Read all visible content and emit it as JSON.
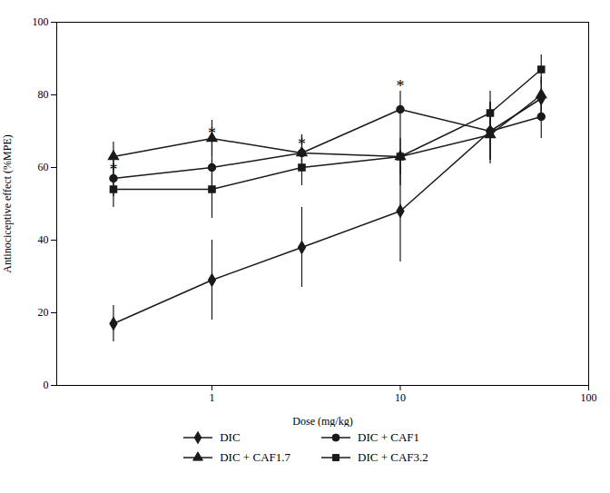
{
  "chart_data": {
    "type": "line",
    "xlabel": "Dose (mg/kg)",
    "ylabel": "Antinociceptive effect (%MPE)",
    "x": [
      0.3,
      1,
      3,
      10,
      30,
      56
    ],
    "series": [
      {
        "name": "DIC",
        "color": "#1a1a1a",
        "marker": "diamond",
        "values": [
          17,
          29,
          38,
          48,
          70,
          79
        ],
        "yerr": [
          5,
          11,
          11,
          14,
          8,
          5
        ]
      },
      {
        "name": "DIC + CAF1",
        "color": "#1a1a1a",
        "marker": "circle",
        "values": [
          57,
          60,
          64,
          76,
          70,
          74
        ],
        "yerr": [
          5,
          7,
          5,
          5,
          8,
          6
        ]
      },
      {
        "name": "DIC + CAF1.7",
        "color": "#1a1a1a",
        "marker": "triangle",
        "values": [
          63,
          68,
          64,
          63,
          69,
          80
        ],
        "yerr": [
          4,
          5,
          5,
          8,
          8,
          5
        ]
      },
      {
        "name": "DIC + CAF3.2",
        "color": "#1a1a1a",
        "marker": "square",
        "values": [
          54,
          54,
          60,
          63,
          75,
          87
        ],
        "yerr": [
          5,
          8,
          5,
          5,
          6,
          4
        ]
      }
    ],
    "annotations": [
      {
        "x": 0.3,
        "y": 58,
        "text": "*"
      },
      {
        "x": 1,
        "y": 68,
        "text": "*"
      },
      {
        "x": 3,
        "y": 65,
        "text": "*"
      },
      {
        "x": 10,
        "y": 81,
        "text": "*"
      }
    ],
    "xlim": [
      0.15,
      100
    ],
    "ylim": [
      0,
      100
    ],
    "xticks": [
      1,
      10,
      100
    ],
    "yticks": [
      0,
      20,
      40,
      60,
      80,
      100
    ],
    "log": "x",
    "grid": false,
    "legend": "bottom"
  }
}
